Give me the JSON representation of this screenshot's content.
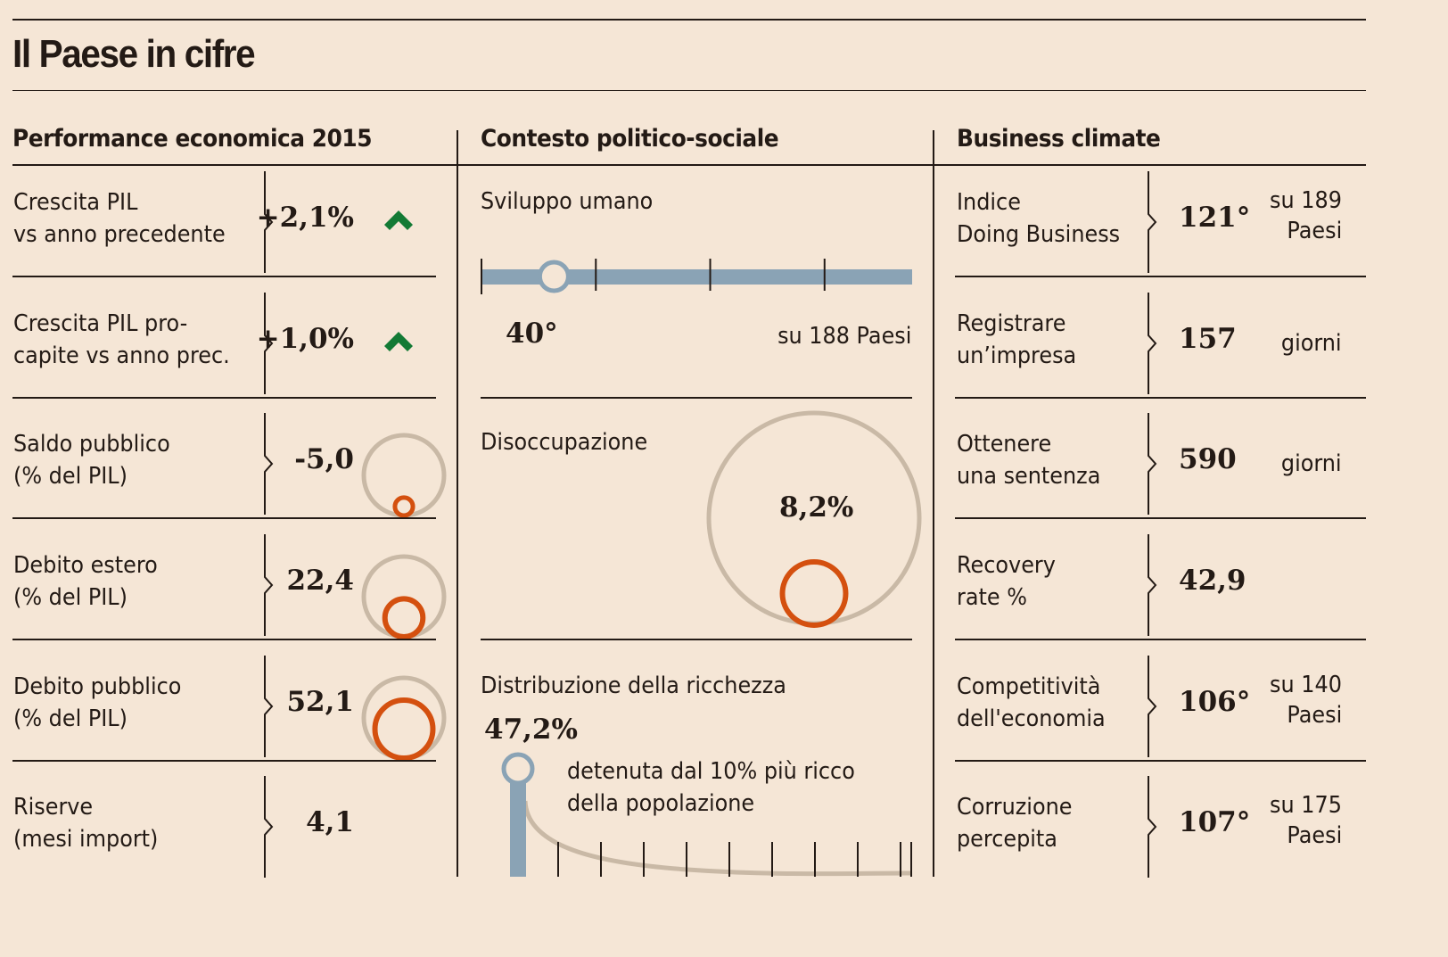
{
  "title": "Il Paese in cifre",
  "colors": {
    "background": "#f5e6d6",
    "text": "#231a15",
    "accent_orange": "#d4500f",
    "ring_grey": "#c9b9a6",
    "bar_blue": "#8aa3b5",
    "up_green": "#137a35"
  },
  "columns": {
    "economic": {
      "heading": "Performance economica 2015",
      "rows": [
        {
          "label1": "Crescita PIL",
          "label2": "vs anno precedente",
          "value": "+2,1%",
          "icon": "arrow-up-icon"
        },
        {
          "label1": "Crescita PIL pro-",
          "label2": "capite vs anno prec.",
          "value": "+1,0%",
          "icon": "arrow-up-icon"
        },
        {
          "label1": "Saldo pubblico",
          "label2": "(% del PIL)",
          "value": "-5,0",
          "ratio": 0.05
        },
        {
          "label1": "Debito estero",
          "label2": "(% del PIL)",
          "value": "22,4",
          "ratio": 0.224
        },
        {
          "label1": "Debito pubblico",
          "label2": "(% del PIL)",
          "value": "52,1",
          "ratio": 0.521
        },
        {
          "label1": "Riserve",
          "label2": "(mesi import)",
          "value": "4,1"
        }
      ]
    },
    "social": {
      "heading": "Contesto politico-sociale",
      "hdi": {
        "label": "Sviluppo umano",
        "rank": "40°",
        "rank_value": 40,
        "total_label": "su 188 Paesi",
        "total": 188
      },
      "unemployment": {
        "label": "Disoccupazione",
        "value": "8,2%",
        "ratio": 0.082
      },
      "wealth": {
        "label": "Distribuzione della ricchezza",
        "value": "47,2%",
        "share": 47.2,
        "desc1": "detenuta dal 10% più ricco",
        "desc2": "della popolazione"
      }
    },
    "business": {
      "heading": "Business climate",
      "rows": [
        {
          "label1": "Indice",
          "label2": "Doing Business",
          "value": "121°",
          "unit1": "su 189",
          "unit2": "Paesi"
        },
        {
          "label1": "Registrare",
          "label2": "un’impresa",
          "value": "157",
          "unit1": "giorni",
          "unit2": ""
        },
        {
          "label1": "Ottenere",
          "label2": "una sentenza",
          "value": "590",
          "unit1": "giorni",
          "unit2": ""
        },
        {
          "label1": "Recovery",
          "label2": "rate %",
          "value": "42,9",
          "unit1": "",
          "unit2": ""
        },
        {
          "label1": "Competitività",
          "label2": "dell'economia",
          "value": "106°",
          "unit1": "su 140",
          "unit2": "Paesi"
        },
        {
          "label1": "Corruzione",
          "label2": "percepita",
          "value": "107°",
          "unit1": "su 175",
          "unit2": "Paesi"
        }
      ]
    }
  }
}
